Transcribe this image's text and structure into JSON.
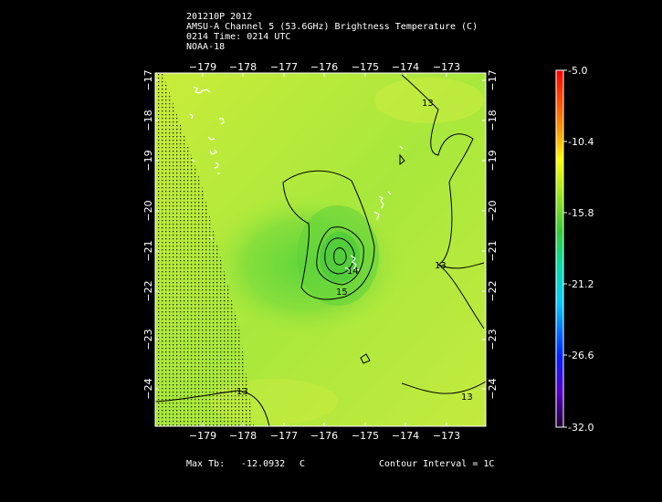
{
  "header": {
    "line1": "201210P 2012",
    "line2": "AMSU-A Channel 5 (53.6GHz) Brightness Temperature (C)",
    "line3": "0214 Time: 0214 UTC",
    "line4": "NOAA-18"
  },
  "map": {
    "lon_ticks": [
      "−179",
      "−178",
      "−177",
      "−176",
      "−175",
      "−174",
      "−173"
    ],
    "lat_ticks": [
      "−17",
      "−18",
      "−19",
      "−20",
      "−21",
      "−22",
      "−23",
      "−24"
    ],
    "contour_labels": [
      "13",
      "13",
      "15",
      "14",
      "13",
      "13"
    ]
  },
  "colorbar": {
    "labels": [
      "-5.0",
      "-10.4",
      "-15.8",
      "-21.2",
      "-26.6",
      "-32.0"
    ]
  },
  "footer": {
    "max_tb_label": "Max Tb:",
    "max_tb_value": "-12.0932",
    "max_tb_unit": "C",
    "contour_interval": "Contour Interval = 1C"
  }
}
